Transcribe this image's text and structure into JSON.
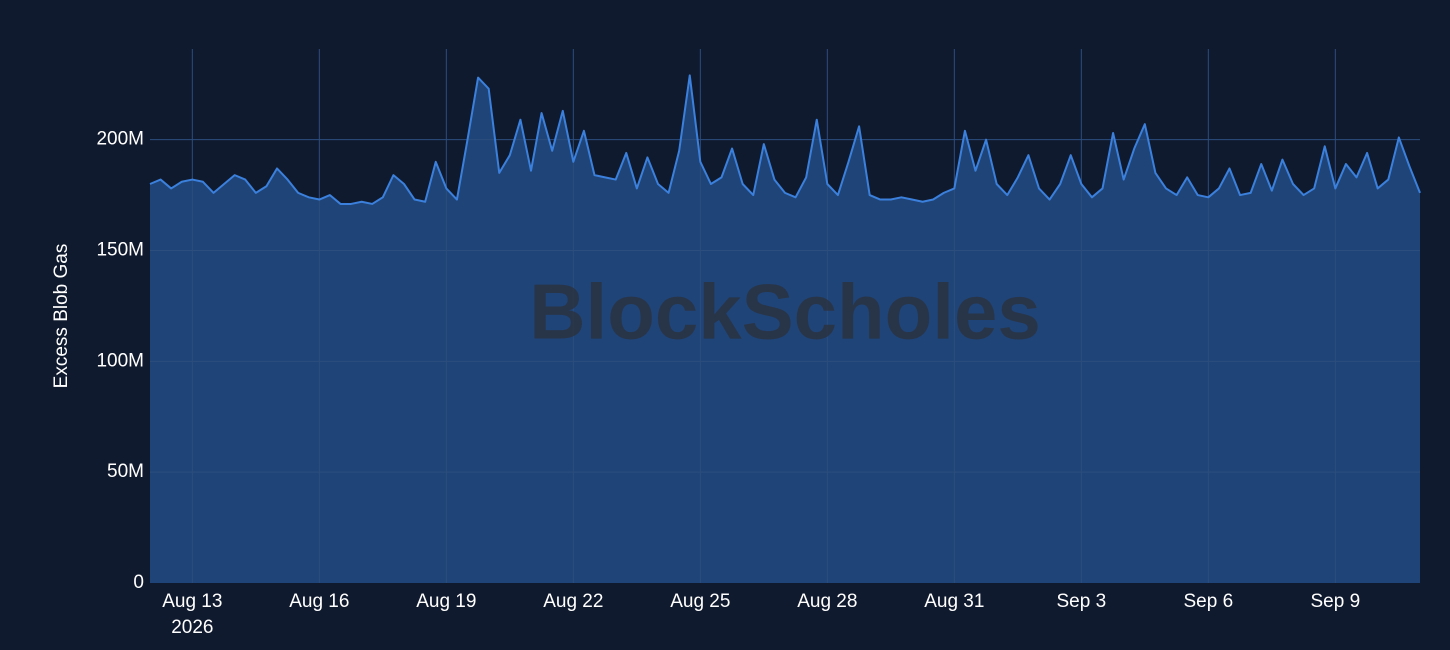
{
  "chart_data": {
    "type": "area",
    "y_label": "Excess Blob Gas",
    "watermark": "BlockScholes",
    "xlim": [
      "2026-08-12T00:00",
      "2026-09-11T00:00"
    ],
    "xticks": [
      {
        "value": "2026-08-13T00:00",
        "label": "Aug 13"
      },
      {
        "value": "2026-08-16T00:00",
        "label": "Aug 16"
      },
      {
        "value": "2026-08-19T00:00",
        "label": "Aug 19"
      },
      {
        "value": "2026-08-22T00:00",
        "label": "Aug 22"
      },
      {
        "value": "2026-08-25T00:00",
        "label": "Aug 25"
      },
      {
        "value": "2026-08-28T00:00",
        "label": "Aug 28"
      },
      {
        "value": "2026-08-31T00:00",
        "label": "Aug 31"
      },
      {
        "value": "2026-09-03T00:00",
        "label": "Sep 3"
      },
      {
        "value": "2026-09-06T00:00",
        "label": "Sep 6"
      },
      {
        "value": "2026-09-09T00:00",
        "label": "Sep 9"
      }
    ],
    "xtick_year_label": "2026",
    "ylim": [
      0,
      240000000
    ],
    "yticks": [
      0,
      {
        "value": 50000000,
        "label": "50M"
      },
      {
        "value": 100000000,
        "label": "100M"
      },
      {
        "value": 150000000,
        "label": "150M"
      },
      {
        "value": 200000000,
        "label": "200M"
      }
    ],
    "grid": true,
    "start": "2026-08-12T00:00",
    "step_hours": 6,
    "series": [
      {
        "color": "#3b80dc",
        "fill": "#1f4478",
        "values": [
          180000000,
          182000000,
          178000000,
          181000000,
          182000000,
          181000000,
          176000000,
          180000000,
          184000000,
          182000000,
          176000000,
          179000000,
          187000000,
          182000000,
          176000000,
          174000000,
          173000000,
          175000000,
          171000000,
          171000000,
          172000000,
          171000000,
          174000000,
          184000000,
          180000000,
          173000000,
          172000000,
          190000000,
          178000000,
          173000000,
          200000000,
          228000000,
          223000000,
          185000000,
          193000000,
          209000000,
          186000000,
          212000000,
          195000000,
          213000000,
          190000000,
          204000000,
          184000000,
          183000000,
          182000000,
          194000000,
          178000000,
          192000000,
          180000000,
          176000000,
          195000000,
          229000000,
          190000000,
          180000000,
          183000000,
          196000000,
          180000000,
          175000000,
          198000000,
          182000000,
          176000000,
          174000000,
          183000000,
          209000000,
          180000000,
          175000000,
          190000000,
          206000000,
          175000000,
          173000000,
          173000000,
          174000000,
          173000000,
          172000000,
          173000000,
          176000000,
          178000000,
          204000000,
          186000000,
          200000000,
          180000000,
          175000000,
          183000000,
          193000000,
          178000000,
          173000000,
          180000000,
          193000000,
          180000000,
          174000000,
          178000000,
          203000000,
          182000000,
          196000000,
          207000000,
          185000000,
          178000000,
          175000000,
          183000000,
          175000000,
          174000000,
          178000000,
          187000000,
          175000000,
          176000000,
          189000000,
          177000000,
          191000000,
          180000000,
          175000000,
          178000000,
          197000000,
          178000000,
          189000000,
          183000000,
          194000000,
          178000000,
          182000000,
          201000000,
          188000000,
          176000000
        ]
      }
    ]
  }
}
